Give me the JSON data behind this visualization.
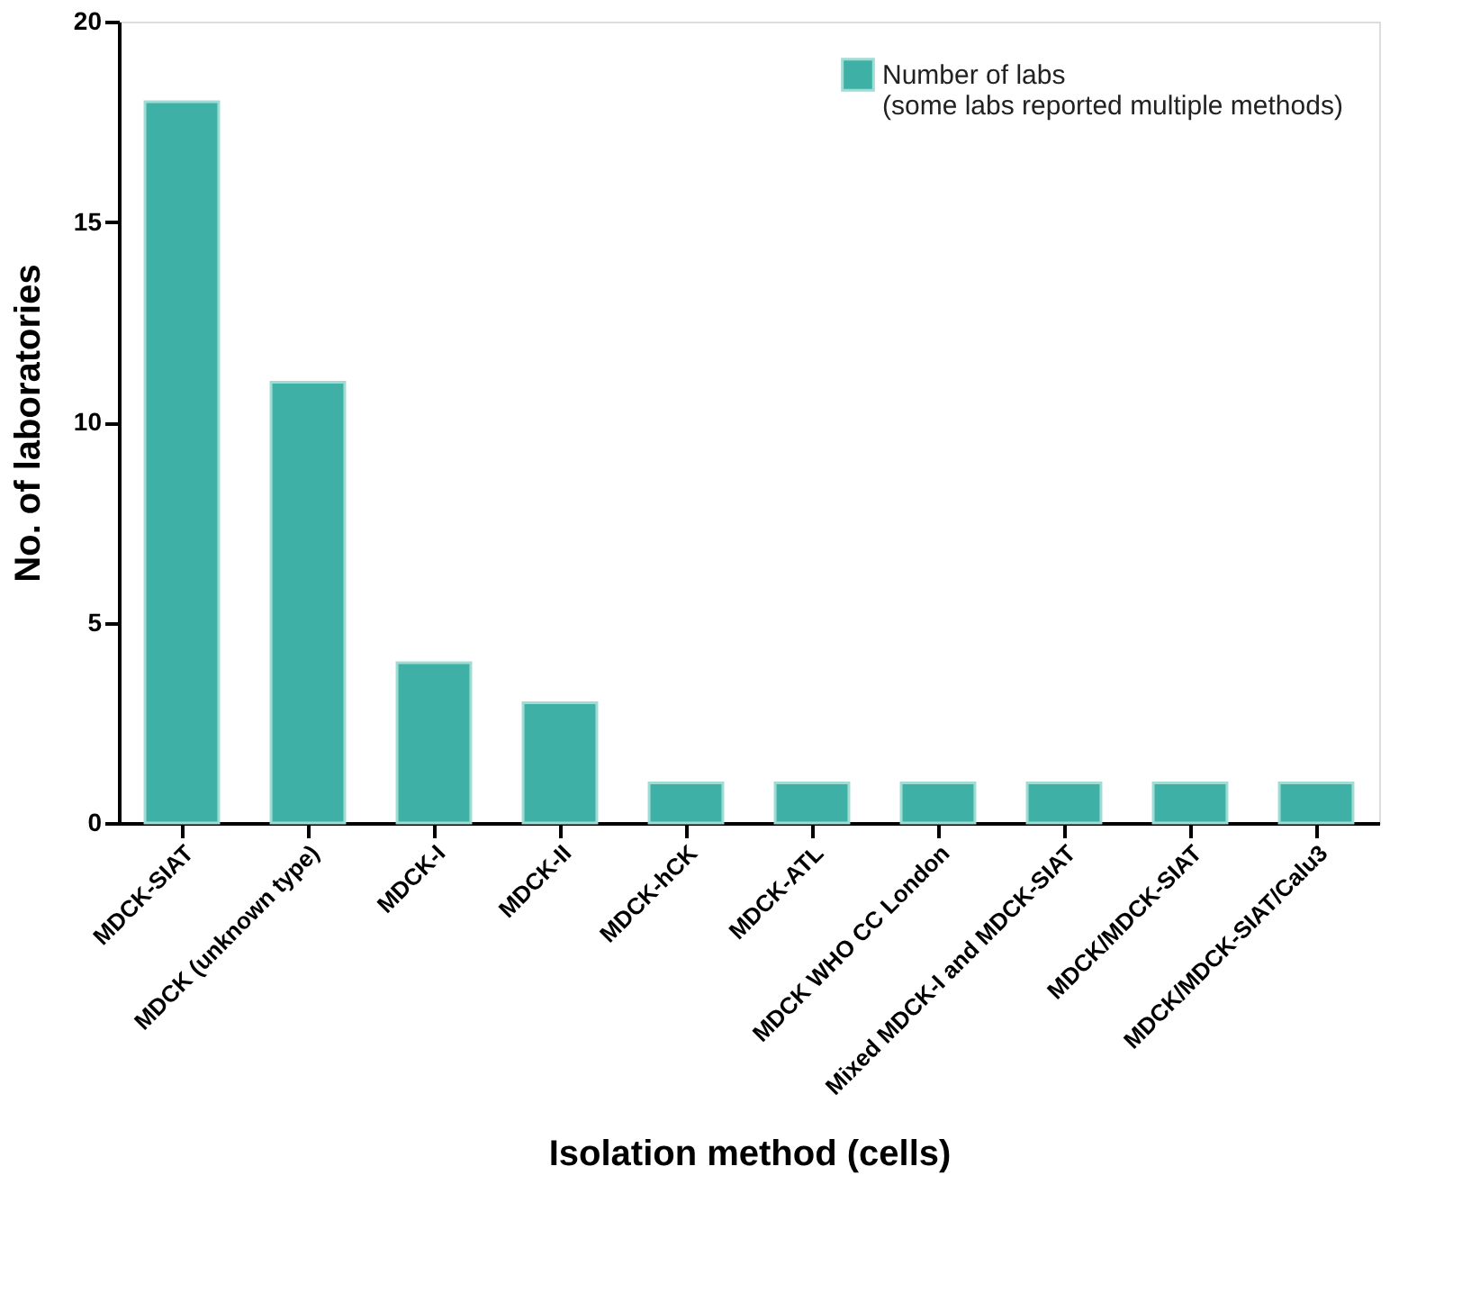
{
  "chart_data": {
    "type": "bar",
    "xlabel": "Isolation method (cells)",
    "ylabel": "No. of laboratories",
    "categories": [
      "MDCK-SIAT",
      "MDCK (unknown type)",
      "MDCK-I",
      "MDCK-II",
      "MDCK-hCK",
      "MDCK-ATL",
      "MDCK WHO CC London",
      "Mixed MDCK-I and MDCK-SIAT",
      "MDCK/MDCK-SIAT",
      "MDCK/MDCK-SIAT/Calu3"
    ],
    "series": [
      {
        "name": "Number of labs\n(some labs reported multiple methods)",
        "color": "#3fb0a5",
        "values": [
          18,
          11,
          4,
          3,
          1,
          1,
          1,
          1,
          1,
          1
        ]
      }
    ],
    "ylim": [
      0,
      20
    ],
    "yticks": [
      0,
      5,
      10,
      15,
      20
    ],
    "grid": false,
    "legend": "top right"
  }
}
